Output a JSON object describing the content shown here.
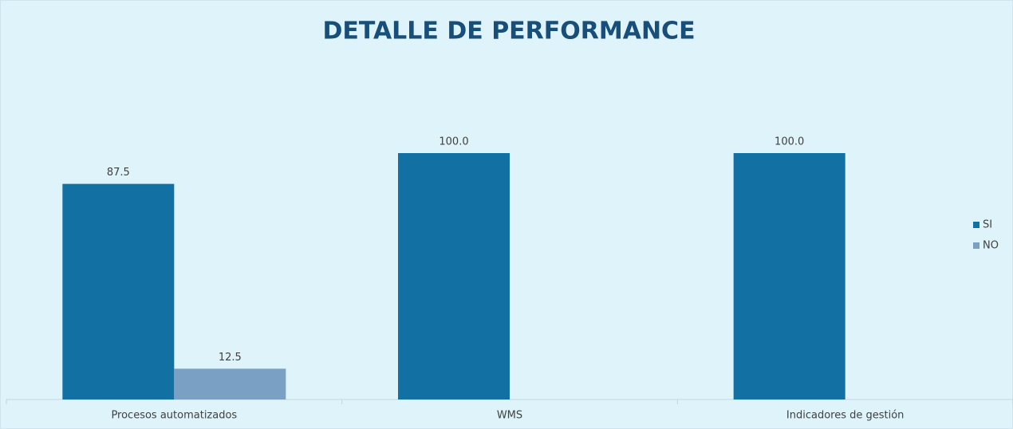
{
  "chart_data": {
    "type": "bar",
    "title": "DETALLE DE PERFORMANCE",
    "categories": [
      "Procesos automatizados",
      "WMS",
      "Indicadores de gestión"
    ],
    "series": [
      {
        "name": "SI",
        "color": "#1270a3",
        "values": [
          87.5,
          100,
          100
        ],
        "value_labels": [
          "87.5",
          "100.0",
          "100.0"
        ]
      },
      {
        "name": "NO",
        "color": "#7aa0c4",
        "values": [
          12.5,
          null,
          null
        ],
        "value_labels": [
          "12.5",
          null,
          null
        ]
      }
    ],
    "legend": "right"
  }
}
